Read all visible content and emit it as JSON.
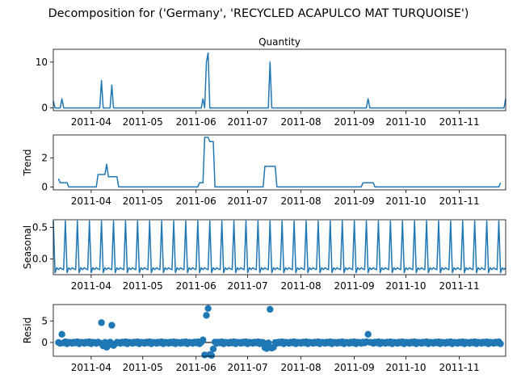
{
  "figure": {
    "suptitle": "Decomposition for ('Germany', 'RECYCLED ACAPULCO MAT TURQUOISE')",
    "line_color": "#1f77b4"
  },
  "chart_data": [
    {
      "type": "line",
      "name": "Quantity",
      "title": "Quantity",
      "ylabel": "",
      "x_range": [
        "2011-03-10",
        "2011-11-28"
      ],
      "ylim": [
        -0.6,
        12.8
      ],
      "yticks": [
        0,
        10
      ],
      "xticks": [
        "2011-04",
        "2011-05",
        "2011-06",
        "2011-07",
        "2011-08",
        "2011-09",
        "2011-10",
        "2011-11"
      ],
      "points": [
        [
          "2011-03-10",
          1.5
        ],
        [
          "2011-03-11",
          0
        ],
        [
          "2011-03-14",
          0
        ],
        [
          "2011-03-15",
          2
        ],
        [
          "2011-03-16",
          0
        ],
        [
          "2011-04-06",
          0
        ],
        [
          "2011-04-07",
          6
        ],
        [
          "2011-04-08",
          0
        ],
        [
          "2011-04-12",
          0
        ],
        [
          "2011-04-13",
          5
        ],
        [
          "2011-04-14",
          0
        ],
        [
          "2011-06-04",
          0
        ],
        [
          "2011-06-05",
          2
        ],
        [
          "2011-06-06",
          0
        ],
        [
          "2011-06-07",
          10
        ],
        [
          "2011-06-08",
          12
        ],
        [
          "2011-06-09",
          0
        ],
        [
          "2011-07-13",
          0
        ],
        [
          "2011-07-14",
          10
        ],
        [
          "2011-07-15",
          0
        ],
        [
          "2011-09-08",
          0
        ],
        [
          "2011-09-09",
          2
        ],
        [
          "2011-09-10",
          0
        ],
        [
          "2011-11-27",
          0
        ],
        [
          "2011-11-28",
          2
        ]
      ]
    },
    {
      "type": "line",
      "name": "Trend",
      "title": "",
      "ylabel": "Trend",
      "x_range": [
        "2011-03-10",
        "2011-11-28"
      ],
      "ylim": [
        -0.2,
        3.6
      ],
      "yticks": [
        0,
        2
      ],
      "xticks": [
        "2011-04",
        "2011-05",
        "2011-06",
        "2011-07",
        "2011-08",
        "2011-09",
        "2011-10",
        "2011-11"
      ],
      "points": [
        [
          "2011-03-13",
          0.57
        ],
        [
          "2011-03-14",
          0.29
        ],
        [
          "2011-03-18",
          0.29
        ],
        [
          "2011-03-19",
          0
        ],
        [
          "2011-04-04",
          0
        ],
        [
          "2011-04-05",
          0.86
        ],
        [
          "2011-04-09",
          0.86
        ],
        [
          "2011-04-10",
          1.57
        ],
        [
          "2011-04-11",
          0.71
        ],
        [
          "2011-04-16",
          0.71
        ],
        [
          "2011-04-17",
          0
        ],
        [
          "2011-06-02",
          0
        ],
        [
          "2011-06-03",
          0.29
        ],
        [
          "2011-06-05",
          0.29
        ],
        [
          "2011-06-06",
          3.43
        ],
        [
          "2011-06-08",
          3.43
        ],
        [
          "2011-06-09",
          3.14
        ],
        [
          "2011-06-11",
          3.14
        ],
        [
          "2011-06-12",
          0
        ],
        [
          "2011-07-10",
          0
        ],
        [
          "2011-07-11",
          1.43
        ],
        [
          "2011-07-17",
          1.43
        ],
        [
          "2011-07-18",
          0
        ],
        [
          "2011-09-05",
          0
        ],
        [
          "2011-09-06",
          0.29
        ],
        [
          "2011-09-12",
          0.29
        ],
        [
          "2011-09-13",
          0
        ],
        [
          "2011-11-24",
          0
        ],
        [
          "2011-11-25",
          0.29
        ]
      ]
    },
    {
      "type": "line",
      "name": "Seasonal",
      "title": "",
      "ylabel": "Seasonal",
      "x_range": [
        "2011-03-10",
        "2011-11-28"
      ],
      "ylim": [
        -0.25,
        0.62
      ],
      "yticks": [
        -0.0,
        0.5
      ],
      "ytick_labels": [
        "0.0",
        "0.5"
      ],
      "xticks": [
        "2011-04",
        "2011-05",
        "2011-06",
        "2011-07",
        "2011-08",
        "2011-09",
        "2011-10",
        "2011-11"
      ],
      "period_days": 7,
      "first_date": "2011-03-10",
      "last_date": "2011-11-28",
      "weekly_pattern": [
        0.6,
        -0.22,
        -0.14,
        -0.17,
        -0.14,
        -0.16,
        -0.17
      ]
    },
    {
      "type": "scatter",
      "name": "Resid",
      "title": "",
      "ylabel": "Resid",
      "x_range": [
        "2011-03-10",
        "2011-11-28"
      ],
      "ylim": [
        -3.2,
        8.8
      ],
      "yticks": [
        0,
        5
      ],
      "xticks": [
        "2011-04",
        "2011-05",
        "2011-06",
        "2011-07",
        "2011-08",
        "2011-09",
        "2011-10",
        "2011-11"
      ],
      "zero_line": true,
      "outliers": [
        [
          "2011-03-15",
          1.9
        ],
        [
          "2011-04-07",
          4.6
        ],
        [
          "2011-04-13",
          4.0
        ],
        [
          "2011-04-08",
          -0.8
        ],
        [
          "2011-04-14",
          -0.7
        ],
        [
          "2011-04-10",
          -1.1
        ],
        [
          "2011-04-11",
          -0.6
        ],
        [
          "2011-06-05",
          0.6
        ],
        [
          "2011-06-06",
          -2.9
        ],
        [
          "2011-06-07",
          6.3
        ],
        [
          "2011-06-08",
          7.9
        ],
        [
          "2011-06-09",
          -2.8
        ],
        [
          "2011-06-10",
          -3.0
        ],
        [
          "2011-06-11",
          -1.5
        ],
        [
          "2011-06-12",
          0.1
        ],
        [
          "2011-07-14",
          7.7
        ],
        [
          "2011-07-11",
          -1.2
        ],
        [
          "2011-07-12",
          -1.4
        ],
        [
          "2011-07-15",
          -1.3
        ],
        [
          "2011-07-16",
          -1.1
        ],
        [
          "2011-09-09",
          1.9
        ]
      ],
      "baseline_date_start": "2011-03-13",
      "baseline_date_end": "2011-11-25"
    }
  ]
}
